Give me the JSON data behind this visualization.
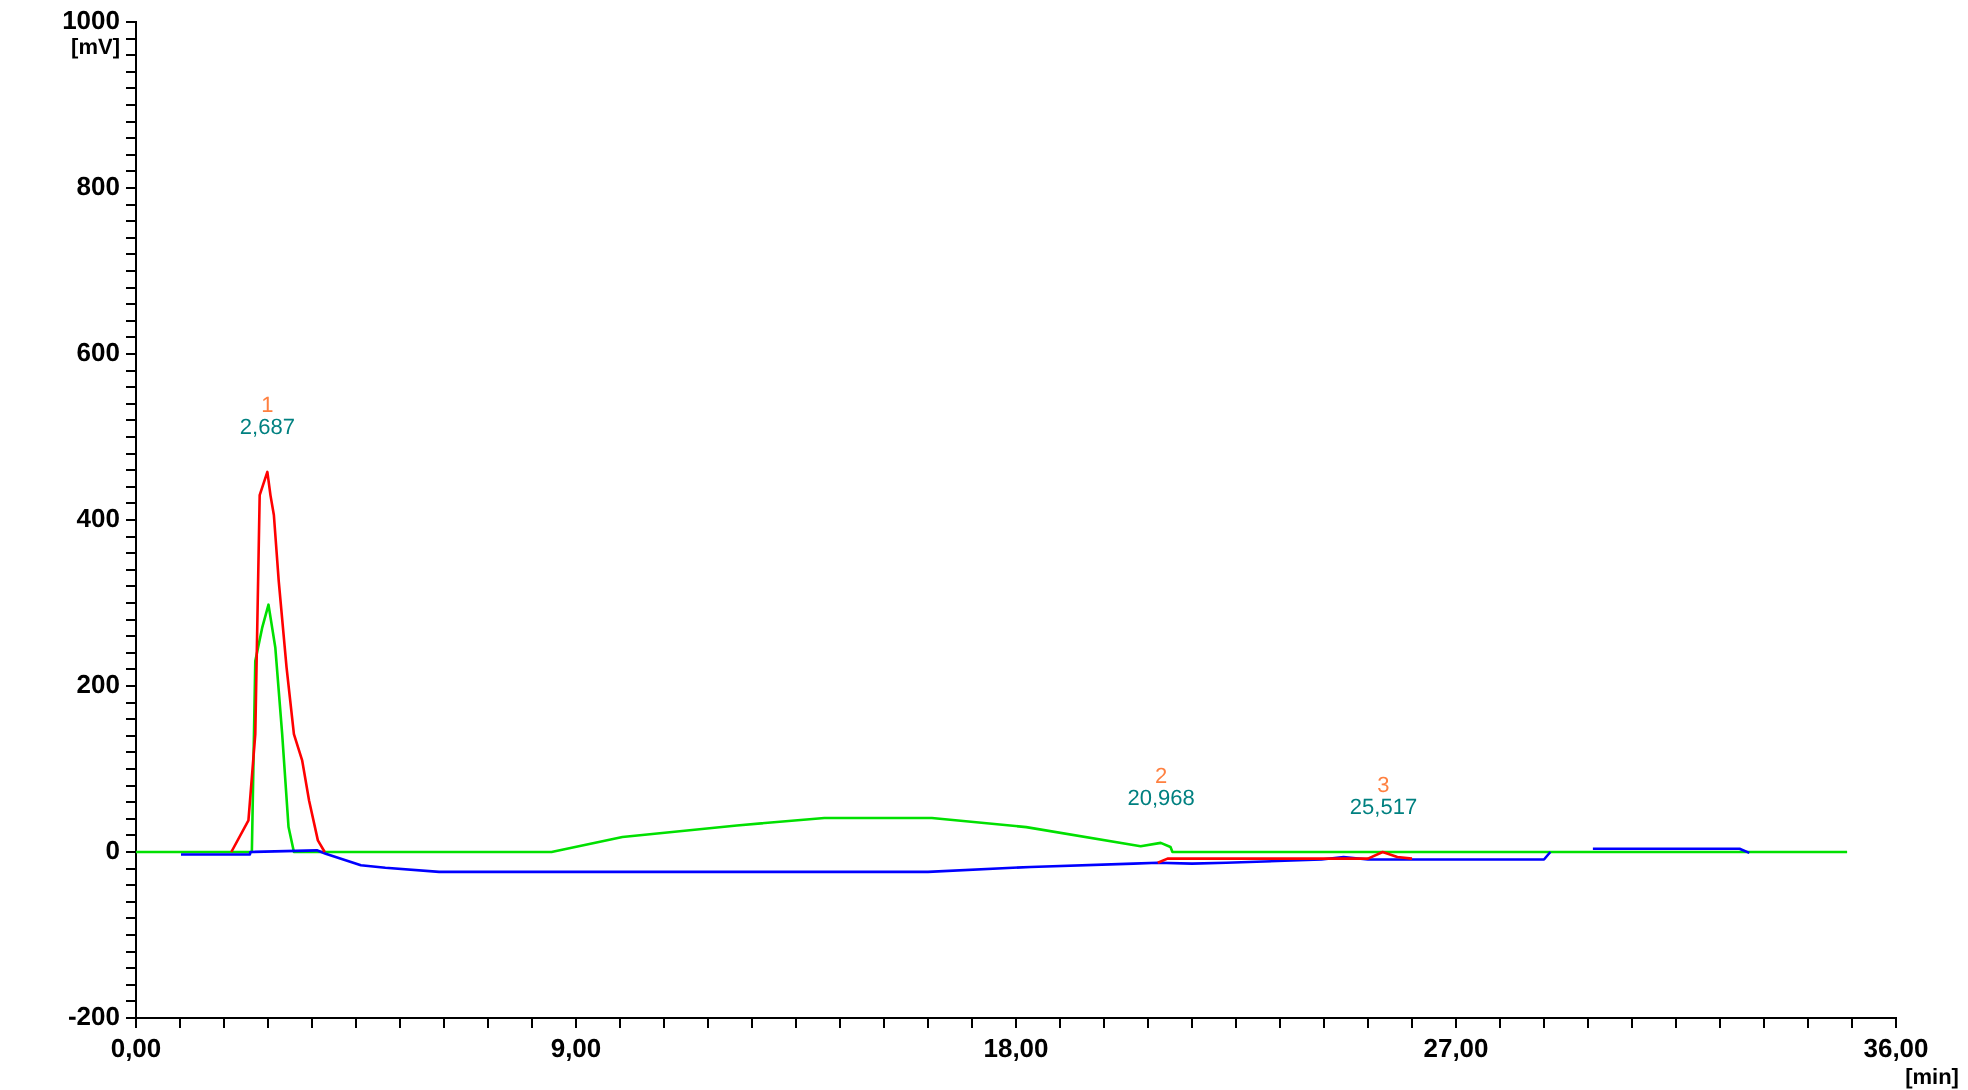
{
  "chart_data": {
    "type": "line",
    "xlabel": "[min]",
    "ylabel": "[mV]",
    "xlim": [
      0,
      36
    ],
    "ylim": [
      -200,
      1000
    ],
    "xticks": [
      {
        "value": 0,
        "label": "0,00"
      },
      {
        "value": 0.9,
        "label": null
      },
      {
        "value": 1.8,
        "label": null
      },
      {
        "value": 2.7,
        "label": null
      },
      {
        "value": 3.6,
        "label": null
      },
      {
        "value": 4.5,
        "label": null
      },
      {
        "value": 5.4,
        "label": null
      },
      {
        "value": 6.3,
        "label": null
      },
      {
        "value": 7.2,
        "label": null
      },
      {
        "value": 8.1,
        "label": null
      },
      {
        "value": 9,
        "label": "9,00"
      },
      {
        "value": 9.9,
        "label": null
      },
      {
        "value": 10.8,
        "label": null
      },
      {
        "value": 11.7,
        "label": null
      },
      {
        "value": 12.6,
        "label": null
      },
      {
        "value": 13.5,
        "label": null
      },
      {
        "value": 14.4,
        "label": null
      },
      {
        "value": 15.3,
        "label": null
      },
      {
        "value": 16.2,
        "label": null
      },
      {
        "value": 17.1,
        "label": null
      },
      {
        "value": 18,
        "label": "18,00"
      },
      {
        "value": 18.9,
        "label": null
      },
      {
        "value": 19.8,
        "label": null
      },
      {
        "value": 20.7,
        "label": null
      },
      {
        "value": 21.6,
        "label": null
      },
      {
        "value": 22.5,
        "label": null
      },
      {
        "value": 23.4,
        "label": null
      },
      {
        "value": 24.3,
        "label": null
      },
      {
        "value": 25.2,
        "label": null
      },
      {
        "value": 26.1,
        "label": null
      },
      {
        "value": 27,
        "label": "27,00"
      },
      {
        "value": 27.9,
        "label": null
      },
      {
        "value": 28.8,
        "label": null
      },
      {
        "value": 29.7,
        "label": null
      },
      {
        "value": 30.6,
        "label": null
      },
      {
        "value": 31.5,
        "label": null
      },
      {
        "value": 32.4,
        "label": null
      },
      {
        "value": 33.3,
        "label": null
      },
      {
        "value": 34.2,
        "label": null
      },
      {
        "value": 35.1,
        "label": null
      },
      {
        "value": 36,
        "label": "36,00"
      }
    ],
    "yticks": [
      -200,
      {
        "value": -180,
        "label": null
      },
      {
        "value": -160,
        "label": null
      },
      {
        "value": -140,
        "label": null
      },
      {
        "value": -120,
        "label": null
      },
      {
        "value": -100,
        "label": null
      },
      {
        "value": -80,
        "label": null
      },
      {
        "value": -60,
        "label": null
      },
      {
        "value": -40,
        "label": null
      },
      {
        "value": -20,
        "label": null
      },
      0,
      {
        "value": 20,
        "label": null
      },
      {
        "value": 40,
        "label": null
      },
      {
        "value": 60,
        "label": null
      },
      {
        "value": 80,
        "label": null
      },
      {
        "value": 100,
        "label": null
      },
      {
        "value": 120,
        "label": null
      },
      {
        "value": 140,
        "label": null
      },
      {
        "value": 160,
        "label": null
      },
      {
        "value": 180,
        "label": null
      },
      200,
      {
        "value": 220,
        "label": null
      },
      {
        "value": 240,
        "label": null
      },
      {
        "value": 260,
        "label": null
      },
      {
        "value": 280,
        "label": null
      },
      {
        "value": 300,
        "label": null
      },
      {
        "value": 320,
        "label": null
      },
      {
        "value": 340,
        "label": null
      },
      {
        "value": 360,
        "label": null
      },
      {
        "value": 380,
        "label": null
      },
      400,
      {
        "value": 420,
        "label": null
      },
      {
        "value": 440,
        "label": null
      },
      {
        "value": 460,
        "label": null
      },
      {
        "value": 480,
        "label": null
      },
      {
        "value": 500,
        "label": null
      },
      {
        "value": 520,
        "label": null
      },
      {
        "value": 540,
        "label": null
      },
      {
        "value": 560,
        "label": null
      },
      {
        "value": 580,
        "label": null
      },
      600,
      {
        "value": 620,
        "label": null
      },
      {
        "value": 640,
        "label": null
      },
      {
        "value": 660,
        "label": null
      },
      {
        "value": 680,
        "label": null
      },
      {
        "value": 700,
        "label": null
      },
      {
        "value": 720,
        "label": null
      },
      {
        "value": 740,
        "label": null
      },
      {
        "value": 760,
        "label": null
      },
      {
        "value": 780,
        "label": null
      },
      800,
      {
        "value": 820,
        "label": null
      },
      {
        "value": 840,
        "label": null
      },
      {
        "value": 860,
        "label": null
      },
      {
        "value": 880,
        "label": null
      },
      {
        "value": 900,
        "label": null
      },
      {
        "value": 920,
        "label": null
      },
      {
        "value": 940,
        "label": null
      },
      {
        "value": 960,
        "label": null
      },
      {
        "value": 980,
        "label": null
      },
      1000
    ],
    "grid": false,
    "legend": false,
    "marker": "none",
    "line_style": "solid",
    "series": [
      {
        "color": "#ff0000",
        "x": [
          1.95,
          2.3,
          2.44,
          2.53,
          2.687,
          2.75,
          2.82,
          2.92,
          3.08,
          3.23,
          3.4,
          3.54,
          3.72,
          3.86,
          20.8,
          20.9,
          21.1,
          21.2,
          25.2,
          25.5,
          25.8,
          26.1
        ],
        "values": [
          0,
          38,
          142,
          430,
          458,
          430,
          406,
          326,
          222,
          142,
          110,
          62,
          14,
          0,
          null,
          -13,
          -8,
          -8,
          -8,
          0,
          -6,
          -8
        ]
      },
      {
        "color": "#0000ff",
        "x": [
          0.92,
          2.33,
          2.34,
          3.7,
          3.88,
          4.6,
          5.1,
          6.2,
          16.2,
          18.3,
          20.4,
          20.9,
          21.6,
          22.3,
          24.25,
          24.7,
          25.2,
          28.8,
          28.93,
          29.4,
          29.8,
          32.8,
          33.0
        ],
        "values": [
          -3,
          -3,
          0,
          2,
          -2,
          -16,
          -19,
          -24,
          -24,
          -18,
          -14,
          -13,
          -14,
          -13,
          -9,
          -6,
          -9,
          -9,
          0,
          null,
          4,
          4,
          -1
        ]
      },
      {
        "color": "#00e000",
        "x": [
          0,
          2.37,
          2.44,
          2.58,
          2.71,
          2.85,
          2.99,
          3.12,
          3.23,
          8.5,
          9.95,
          12.29,
          14.08,
          16.28,
          18.21,
          20.55,
          20.96,
          21.16,
          21.2,
          35.0
        ],
        "values": [
          0,
          0,
          230,
          270,
          298,
          246,
          142,
          30,
          0,
          0,
          18,
          32,
          41,
          41,
          30,
          7,
          11,
          6,
          0,
          0
        ]
      }
    ],
    "annotations": [
      {
        "text": "1",
        "x": 2.687,
        "y": 458
      },
      {
        "text": "2,687",
        "x": 2.687,
        "y": 458
      },
      {
        "text": "2",
        "x": 20.968,
        "y": 11
      },
      {
        "text": "20,968",
        "x": 20.968,
        "y": 11
      },
      {
        "text": "3",
        "x": 25.517,
        "y": 0
      },
      {
        "text": "25,517",
        "x": 25.517,
        "y": 0
      }
    ]
  }
}
